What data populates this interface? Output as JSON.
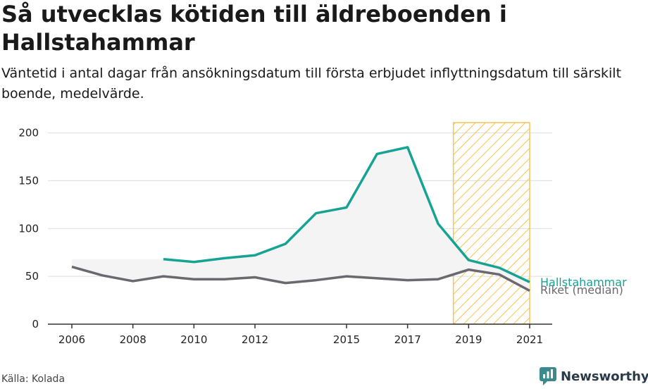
{
  "header": {
    "title": "Så utvecklas kötiden till äldreboenden i Hallstahammar",
    "subtitle": "Väntetid i antal dagar från ansökningsdatum till första erbjudet inflyttningsdatum till särskilt boende, medelvärde."
  },
  "footer": {
    "source": "Källa: Kolada",
    "brand": "Newsworthy"
  },
  "colors": {
    "hallstahammar": "#16a394",
    "riket": "#6b6870",
    "highlight": "#f5c451",
    "area": "#f4f4f4",
    "grid": "#dddddd"
  },
  "chart_data": {
    "type": "line",
    "x_range": [
      2006,
      2021
    ],
    "ylim": [
      0,
      210
    ],
    "y_ticks": [
      0,
      50,
      100,
      150,
      200
    ],
    "x_ticks": [
      2006,
      2008,
      2010,
      2012,
      2015,
      2017,
      2019,
      2021
    ],
    "highlight_range": [
      2018.5,
      2021
    ],
    "series": [
      {
        "name": "Hallstahammar",
        "points": [
          [
            2009,
            68
          ],
          [
            2010,
            65
          ],
          [
            2011,
            69
          ],
          [
            2012,
            72
          ],
          [
            2013,
            84
          ],
          [
            2014,
            116
          ],
          [
            2015,
            122
          ],
          [
            2016,
            178
          ],
          [
            2017,
            185
          ],
          [
            2018,
            105
          ],
          [
            2019,
            67
          ],
          [
            2020,
            59
          ],
          [
            2021,
            44
          ]
        ]
      },
      {
        "name": "Riket (median)",
        "points": [
          [
            2006,
            60
          ],
          [
            2007,
            51
          ],
          [
            2008,
            45
          ],
          [
            2009,
            50
          ],
          [
            2010,
            47
          ],
          [
            2011,
            47
          ],
          [
            2012,
            49
          ],
          [
            2013,
            43
          ],
          [
            2014,
            46
          ],
          [
            2015,
            50
          ],
          [
            2016,
            48
          ],
          [
            2017,
            46
          ],
          [
            2018,
            47
          ],
          [
            2019,
            57
          ],
          [
            2020,
            52
          ],
          [
            2021,
            35
          ]
        ]
      }
    ]
  }
}
